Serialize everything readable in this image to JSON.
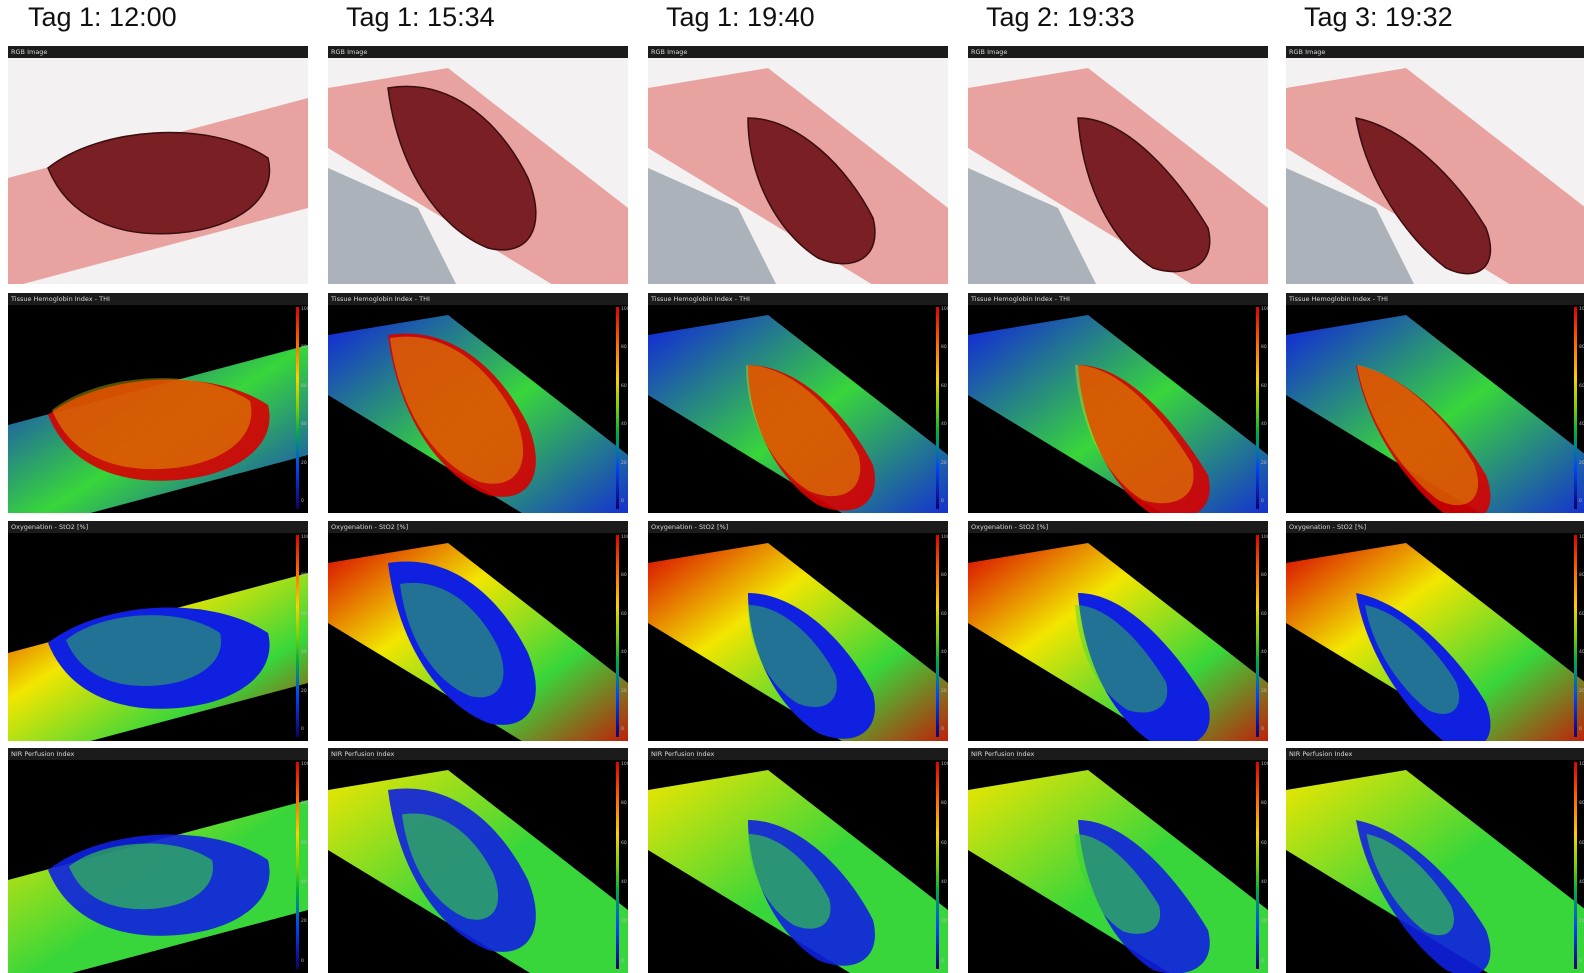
{
  "columns": [
    {
      "title": "Tag 1: 12:00"
    },
    {
      "title": "Tag 1: 15:34"
    },
    {
      "title": "Tag 1: 19:40"
    },
    {
      "title": "Tag 2: 19:33"
    },
    {
      "title": "Tag 3: 19:32"
    }
  ],
  "panels": {
    "rgb": "RGB Image",
    "thi": "Tissue Hemoglobin Index - THI",
    "sto2": "Oxygenation - StO2 [%]",
    "nir": "NIR Perfusion Index"
  },
  "scale_ticks": [
    "100",
    "80",
    "60",
    "40",
    "20",
    "0"
  ],
  "colors": {
    "wound": "#7a1f24",
    "skin": "#e8a3a0",
    "map_red": "#d80000",
    "map_yellow": "#f2e600",
    "map_green": "#38d63a",
    "map_blue": "#1020e0",
    "background": "#000000"
  }
}
